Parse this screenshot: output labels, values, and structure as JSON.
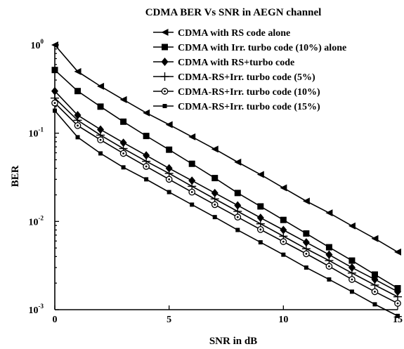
{
  "chart_data": {
    "type": "line",
    "title": "CDMA BER Vs SNR in AEGN channel",
    "xlabel": "SNR in dB",
    "ylabel": "BER",
    "xlim": [
      0,
      15
    ],
    "ylim": [
      0.001,
      1
    ],
    "yscale": "log",
    "grid": false,
    "legend_position": "top-right",
    "x_ticks": [
      {
        "value": 0,
        "label": "0"
      },
      {
        "value": 5,
        "label": "5"
      },
      {
        "value": 10,
        "label": "10"
      },
      {
        "value": 15,
        "label": "15"
      }
    ],
    "y_ticks": [
      {
        "value": 1,
        "base": "10",
        "exp": "0"
      },
      {
        "value": 0.1,
        "base": "10",
        "exp": "-1"
      },
      {
        "value": 0.01,
        "base": "10",
        "exp": "-2"
      },
      {
        "value": 0.001,
        "base": "10",
        "exp": "-3"
      }
    ],
    "x": [
      0,
      1,
      2,
      3,
      4,
      5,
      6,
      7,
      8,
      9,
      10,
      11,
      12,
      13,
      14,
      15
    ],
    "series": [
      {
        "name": "CDMA with RS code alone",
        "marker": "triangle-left",
        "values": [
          1.0,
          0.5,
          0.34,
          0.24,
          0.17,
          0.125,
          0.091,
          0.066,
          0.047,
          0.034,
          0.024,
          0.017,
          0.0125,
          0.0089,
          0.0064,
          0.0045
        ]
      },
      {
        "name": "CDMA with Irr. turbo code (10%) alone",
        "marker": "square-filled",
        "values": [
          0.52,
          0.3,
          0.2,
          0.135,
          0.093,
          0.065,
          0.045,
          0.031,
          0.021,
          0.0148,
          0.0104,
          0.0073,
          0.0051,
          0.0036,
          0.0025,
          0.00175
        ]
      },
      {
        "name": "CDMA with RS+turbo code",
        "marker": "diamond-filled",
        "values": [
          0.3,
          0.16,
          0.11,
          0.078,
          0.056,
          0.04,
          0.029,
          0.021,
          0.0152,
          0.011,
          0.008,
          0.0058,
          0.0042,
          0.003,
          0.0022,
          0.0016
        ]
      },
      {
        "name": "CDMA-RS+Irr. turbo code (5%)",
        "marker": "plus",
        "values": [
          0.25,
          0.14,
          0.095,
          0.067,
          0.048,
          0.035,
          0.025,
          0.018,
          0.013,
          0.0094,
          0.0068,
          0.0049,
          0.0036,
          0.0026,
          0.0019,
          0.0014
        ]
      },
      {
        "name": "CDMA-RS+Irr. turbo code (10%)",
        "marker": "circle-dot",
        "values": [
          0.22,
          0.122,
          0.084,
          0.059,
          0.042,
          0.03,
          0.0215,
          0.0155,
          0.0112,
          0.0081,
          0.0059,
          0.0043,
          0.0031,
          0.0022,
          0.0016,
          0.00118
        ]
      },
      {
        "name": "CDMA-RS+Irr. turbo code (15%)",
        "marker": "star-small",
        "values": [
          0.18,
          0.09,
          0.059,
          0.041,
          0.03,
          0.0215,
          0.0155,
          0.0112,
          0.008,
          0.0058,
          0.0042,
          0.003,
          0.0022,
          0.0016,
          0.00115,
          0.00085
        ]
      }
    ]
  }
}
